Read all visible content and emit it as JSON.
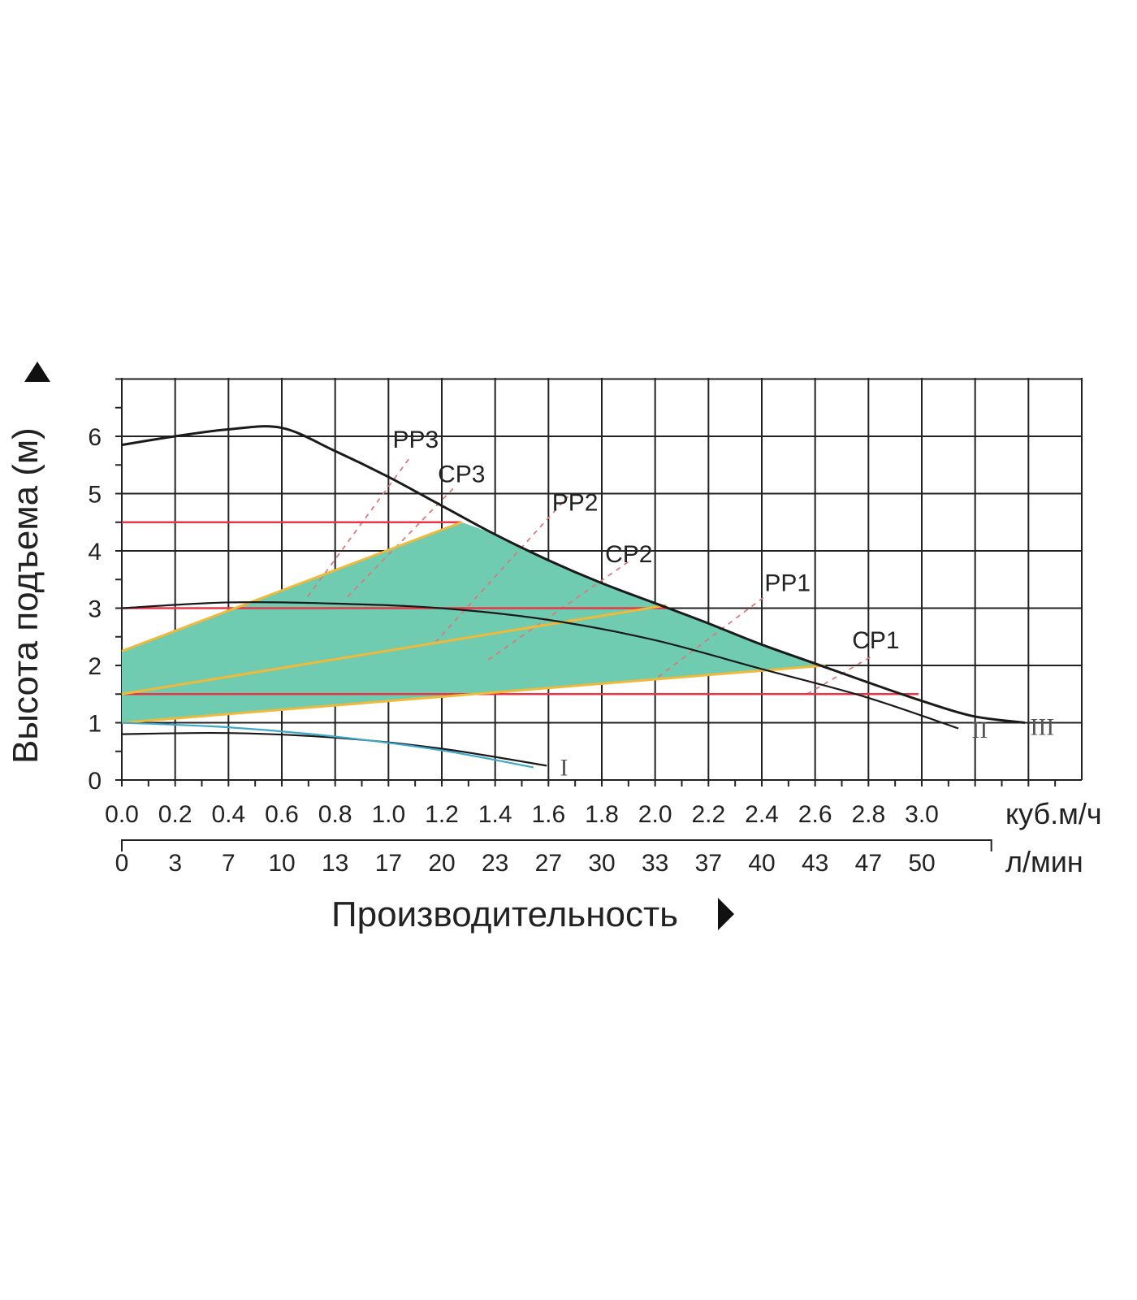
{
  "chart_data": {
    "type": "line",
    "ylabel": "Высота подъема (м)",
    "xlabel": "Производительность",
    "x_unit_primary": "куб.м/ч",
    "x_unit_secondary": "л/мин",
    "xlim": [
      0,
      3.6
    ],
    "ylim": [
      0,
      7
    ],
    "grid": true,
    "x_ticks_primary": [
      "0.0",
      "0.2",
      "0.4",
      "0.6",
      "0.8",
      "1.0",
      "1.2",
      "1.4",
      "1.6",
      "1.8",
      "2.0",
      "2.2",
      "2.4",
      "2.6",
      "2.8",
      "3.0"
    ],
    "x_ticks_secondary": [
      "0",
      "3",
      "7",
      "10",
      "13",
      "17",
      "20",
      "23",
      "27",
      "30",
      "33",
      "37",
      "40",
      "43",
      "47",
      "50"
    ],
    "y_ticks": [
      "0",
      "1",
      "2",
      "3",
      "4",
      "5",
      "6"
    ],
    "pump_curves": [
      {
        "label": "I",
        "points": [
          [
            0,
            0.8
          ],
          [
            0.4,
            0.82
          ],
          [
            0.8,
            0.74
          ],
          [
            1.2,
            0.55
          ],
          [
            1.6,
            0.25
          ]
        ]
      },
      {
        "label": "",
        "points": [
          [
            0,
            1.0
          ],
          [
            0.4,
            0.92
          ],
          [
            0.8,
            0.76
          ],
          [
            1.2,
            0.52
          ],
          [
            1.55,
            0.22
          ]
        ]
      },
      {
        "label": "II",
        "points": [
          [
            0,
            3.0
          ],
          [
            0.4,
            3.1
          ],
          [
            0.8,
            3.08
          ],
          [
            1.2,
            3.0
          ],
          [
            1.6,
            2.8
          ],
          [
            2.0,
            2.45
          ],
          [
            2.4,
            1.95
          ],
          [
            2.8,
            1.45
          ],
          [
            3.15,
            0.9
          ]
        ]
      },
      {
        "label": "III",
        "points": [
          [
            0,
            5.85
          ],
          [
            0.2,
            6.0
          ],
          [
            0.4,
            6.12
          ],
          [
            0.6,
            6.15
          ],
          [
            0.8,
            5.75
          ],
          [
            1.0,
            5.3
          ],
          [
            1.2,
            4.8
          ],
          [
            1.4,
            4.3
          ],
          [
            1.6,
            3.85
          ],
          [
            1.8,
            3.45
          ],
          [
            2.0,
            3.1
          ],
          [
            2.2,
            2.75
          ],
          [
            2.4,
            2.38
          ],
          [
            2.6,
            2.05
          ],
          [
            2.8,
            1.72
          ],
          [
            3.0,
            1.4
          ],
          [
            3.2,
            1.12
          ],
          [
            3.4,
            1.0
          ]
        ]
      }
    ],
    "constant_pressure_lines": [
      {
        "label": "CP1",
        "value": 1.5,
        "x_end": 3.0
      },
      {
        "label": "CP2",
        "value": 3.0,
        "x_end": 2.05
      },
      {
        "label": "CP3",
        "value": 4.5,
        "x_end": 1.28
      }
    ],
    "proportional_pressure_lines": [
      {
        "label": "PP1",
        "x_start": 0.0,
        "y_start": 1.0,
        "x_end": 2.65,
        "y_end": 2.0
      },
      {
        "label": "PP2",
        "x_start": 0.0,
        "y_start": 1.5,
        "x_end": 2.05,
        "y_end": 3.05
      },
      {
        "label": "PP3",
        "x_start": 0.0,
        "y_start": 2.25,
        "x_end": 1.28,
        "y_end": 4.5
      }
    ],
    "dashed_extensions": [
      {
        "label": "PP3",
        "points": [
          [
            0.7,
            3.2
          ],
          [
            1.08,
            5.6
          ]
        ],
        "label_at": [
          1.02,
          5.8
        ]
      },
      {
        "label": "CP3",
        "points": [
          [
            0.85,
            3.2
          ],
          [
            1.25,
            5.1
          ]
        ],
        "label_at": [
          1.19,
          5.2
        ]
      },
      {
        "label": "PP2",
        "points": [
          [
            1.18,
            2.4
          ],
          [
            1.68,
            4.95
          ]
        ],
        "label_at": [
          1.62,
          4.7
        ]
      },
      {
        "label": "CP2",
        "points": [
          [
            1.38,
            2.1
          ],
          [
            1.92,
            3.85
          ]
        ],
        "label_at": [
          1.82,
          3.8
        ]
      },
      {
        "label": "PP1",
        "points": [
          [
            2.02,
            1.8
          ],
          [
            2.42,
            3.2
          ]
        ],
        "label_at": [
          2.42,
          3.3
        ]
      },
      {
        "label": "CP1",
        "points": [
          [
            2.58,
            1.5
          ],
          [
            2.82,
            2.15
          ]
        ],
        "label_at": [
          2.75,
          2.3
        ]
      }
    ],
    "colors": {
      "fill": "#6fccb0",
      "constant": "#e8354a",
      "proportional": "#f0b93a",
      "curve": "#1a1a1a",
      "curve_I_blue": "#3ea8c8",
      "dashed": "#d97b7b"
    }
  }
}
